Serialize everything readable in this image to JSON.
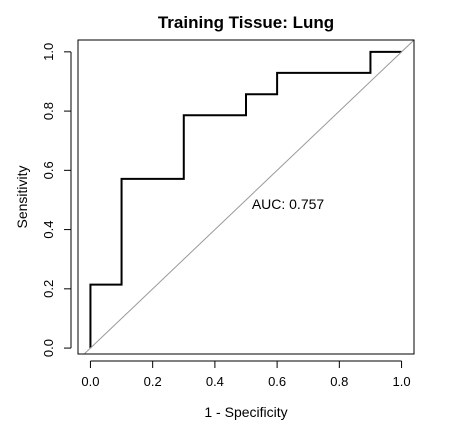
{
  "chart_data": {
    "type": "line",
    "title": "Training Tissue: Lung",
    "xlabel": "1 - Specificity",
    "ylabel": "Sensitivity",
    "xlim": [
      -0.04,
      1.04
    ],
    "ylim": [
      -0.02,
      1.04
    ],
    "x_ticks": [
      0.0,
      0.2,
      0.4,
      0.6,
      0.8,
      1.0
    ],
    "x_tick_labels": [
      "0.0",
      "0.2",
      "0.4",
      "0.6",
      "0.8",
      "1.0"
    ],
    "y_ticks": [
      0.0,
      0.2,
      0.4,
      0.6,
      0.8,
      1.0
    ],
    "y_tick_labels": [
      "0.0",
      "0.2",
      "0.4",
      "0.6",
      "0.8",
      "1.0"
    ],
    "annotation": "AUC: 0.757",
    "grid": false,
    "series": [
      {
        "role": "roc-curve",
        "color": "#000000",
        "x": [
          0.0,
          0.0,
          0.1,
          0.1,
          0.3,
          0.3,
          0.5,
          0.5,
          0.6,
          0.6,
          0.9,
          0.9,
          1.0
        ],
        "y": [
          0.0,
          0.214,
          0.214,
          0.571,
          0.571,
          0.786,
          0.786,
          0.857,
          0.857,
          0.929,
          0.929,
          1.0,
          1.0
        ]
      },
      {
        "role": "reference-diagonal",
        "color": "#999999",
        "x": [
          -0.04,
          1.04
        ],
        "y": [
          -0.04,
          1.04
        ]
      }
    ]
  }
}
